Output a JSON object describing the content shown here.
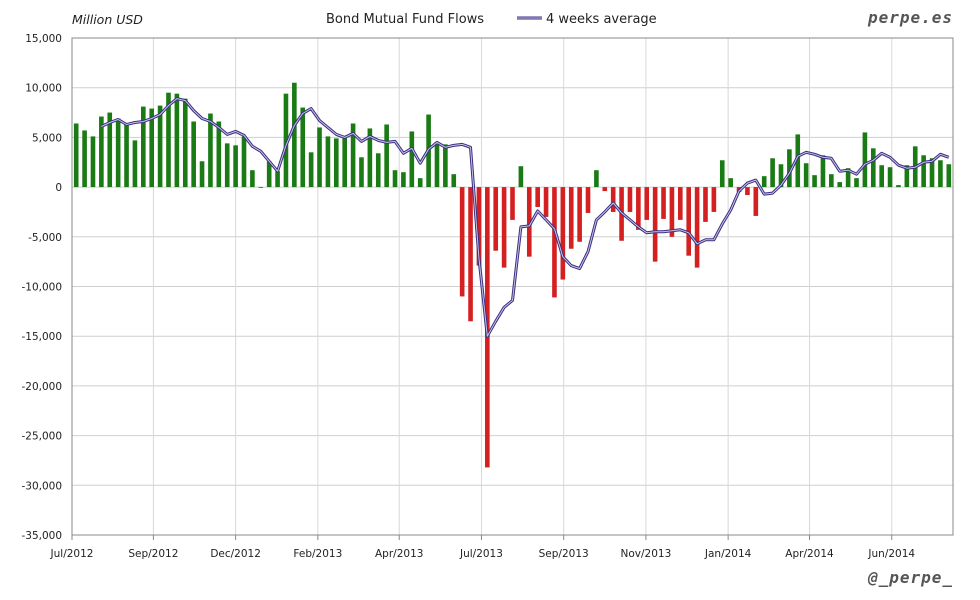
{
  "chart_data": {
    "type": "bar",
    "title": "Bond Mutual Fund Flows",
    "ylabel": "Million USD",
    "xlabel": "",
    "ylim": [
      -35000,
      15000
    ],
    "y_ticks": [
      "15,000",
      "10,000",
      "5,000",
      "0",
      "-5,000",
      "-10,000",
      "-15,000",
      "-20,000",
      "-25,000",
      "-30,000",
      "-35,000"
    ],
    "y_tick_values": [
      15000,
      10000,
      5000,
      0,
      -5000,
      -10000,
      -15000,
      -20000,
      -25000,
      -30000,
      -35000
    ],
    "x_ticks": [
      {
        "label": "Jul/2012",
        "index": 0
      },
      {
        "label": "Sep/2012",
        "index": 9.7
      },
      {
        "label": "Dec/2012",
        "index": 19.5
      },
      {
        "label": "Feb/2013",
        "index": 29.3
      },
      {
        "label": "Apr/2013",
        "index": 39
      },
      {
        "label": "Jul/2013",
        "index": 48.8
      },
      {
        "label": "Sep/2013",
        "index": 58.6
      },
      {
        "label": "Nov/2013",
        "index": 68.4
      },
      {
        "label": "Jan/2014",
        "index": 78.2
      },
      {
        "label": "Apr/2014",
        "index": 87.9
      },
      {
        "label": "Jun/2014",
        "index": 97.7
      }
    ],
    "grid": true,
    "legend": "top",
    "positive_color": "#1a7a14",
    "negative_color": "#d42020",
    "line_color": "#6a5fa8",
    "series": [
      {
        "name": "",
        "type": "bar",
        "values": [
          6400,
          5700,
          5100,
          7100,
          7500,
          6900,
          6300,
          4700,
          8100,
          7900,
          8200,
          9500,
          9400,
          8900,
          6600,
          2600,
          7400,
          6600,
          4400,
          4200,
          5100,
          1700,
          0,
          2600,
          1600,
          9400,
          10500,
          8000,
          3500,
          6000,
          5100,
          4900,
          5100,
          6400,
          3000,
          5900,
          3400,
          6300,
          1700,
          1500,
          5600,
          900,
          7300,
          4500,
          4300,
          1300,
          -11000,
          -13500,
          -7900,
          -28200,
          -6400,
          -8100,
          -3300,
          2100,
          -7000,
          -2000,
          -3000,
          -11100,
          -9300,
          -6200,
          -5500,
          -2600,
          1700,
          -400,
          -2500,
          -5400,
          -2500,
          -4300,
          -3300,
          -7500,
          -3200,
          -5000,
          -3300,
          -6900,
          -8100,
          -3500,
          -2500,
          2700,
          900,
          -500,
          -800,
          -2900,
          1100,
          2900,
          2300,
          3800,
          5300,
          2400,
          1200,
          3200,
          1300,
          500,
          1900,
          900,
          5500,
          3900,
          2200,
          2000,
          200,
          2200,
          4100,
          3200,
          2900,
          2700,
          2300
        ]
      },
      {
        "name": "4 weeks average",
        "type": "line",
        "values": [
          null,
          null,
          null,
          6100,
          6500,
          6800,
          6300,
          6500,
          6600,
          6900,
          7300,
          8200,
          8900,
          8700,
          7700,
          6900,
          6600,
          6000,
          5300,
          5600,
          5200,
          4100,
          3600,
          2600,
          1600,
          4200,
          6200,
          7400,
          7900,
          6700,
          6000,
          5300,
          5000,
          5400,
          4600,
          5100,
          4700,
          4500,
          4600,
          3400,
          3900,
          2400,
          3800,
          4500,
          4000,
          4200,
          4300,
          4000,
          -7100,
          -15000,
          -13500,
          -12100,
          -11400,
          -4000,
          -3900,
          -2400,
          -3300,
          -4200,
          -7000,
          -7900,
          -8200,
          -6500,
          -3300,
          -2500,
          -1600,
          -2600,
          -3300,
          -4000,
          -4600,
          -4500,
          -4500,
          -4400,
          -4300,
          -4600,
          -5700,
          -5300,
          -5300,
          -3700,
          -2300,
          -400,
          400,
          700,
          -700,
          -600,
          200,
          1400,
          3100,
          3500,
          3300,
          3000,
          2900,
          1600,
          1700,
          1300,
          2300,
          2700,
          3400,
          3000,
          2200,
          1900,
          2000,
          2500,
          2600,
          3300,
          3000
        ]
      }
    ]
  },
  "legend": {
    "label": "4 weeks average"
  },
  "brand": {
    "top": "perpe.es",
    "bottom": "@_perpe_"
  }
}
